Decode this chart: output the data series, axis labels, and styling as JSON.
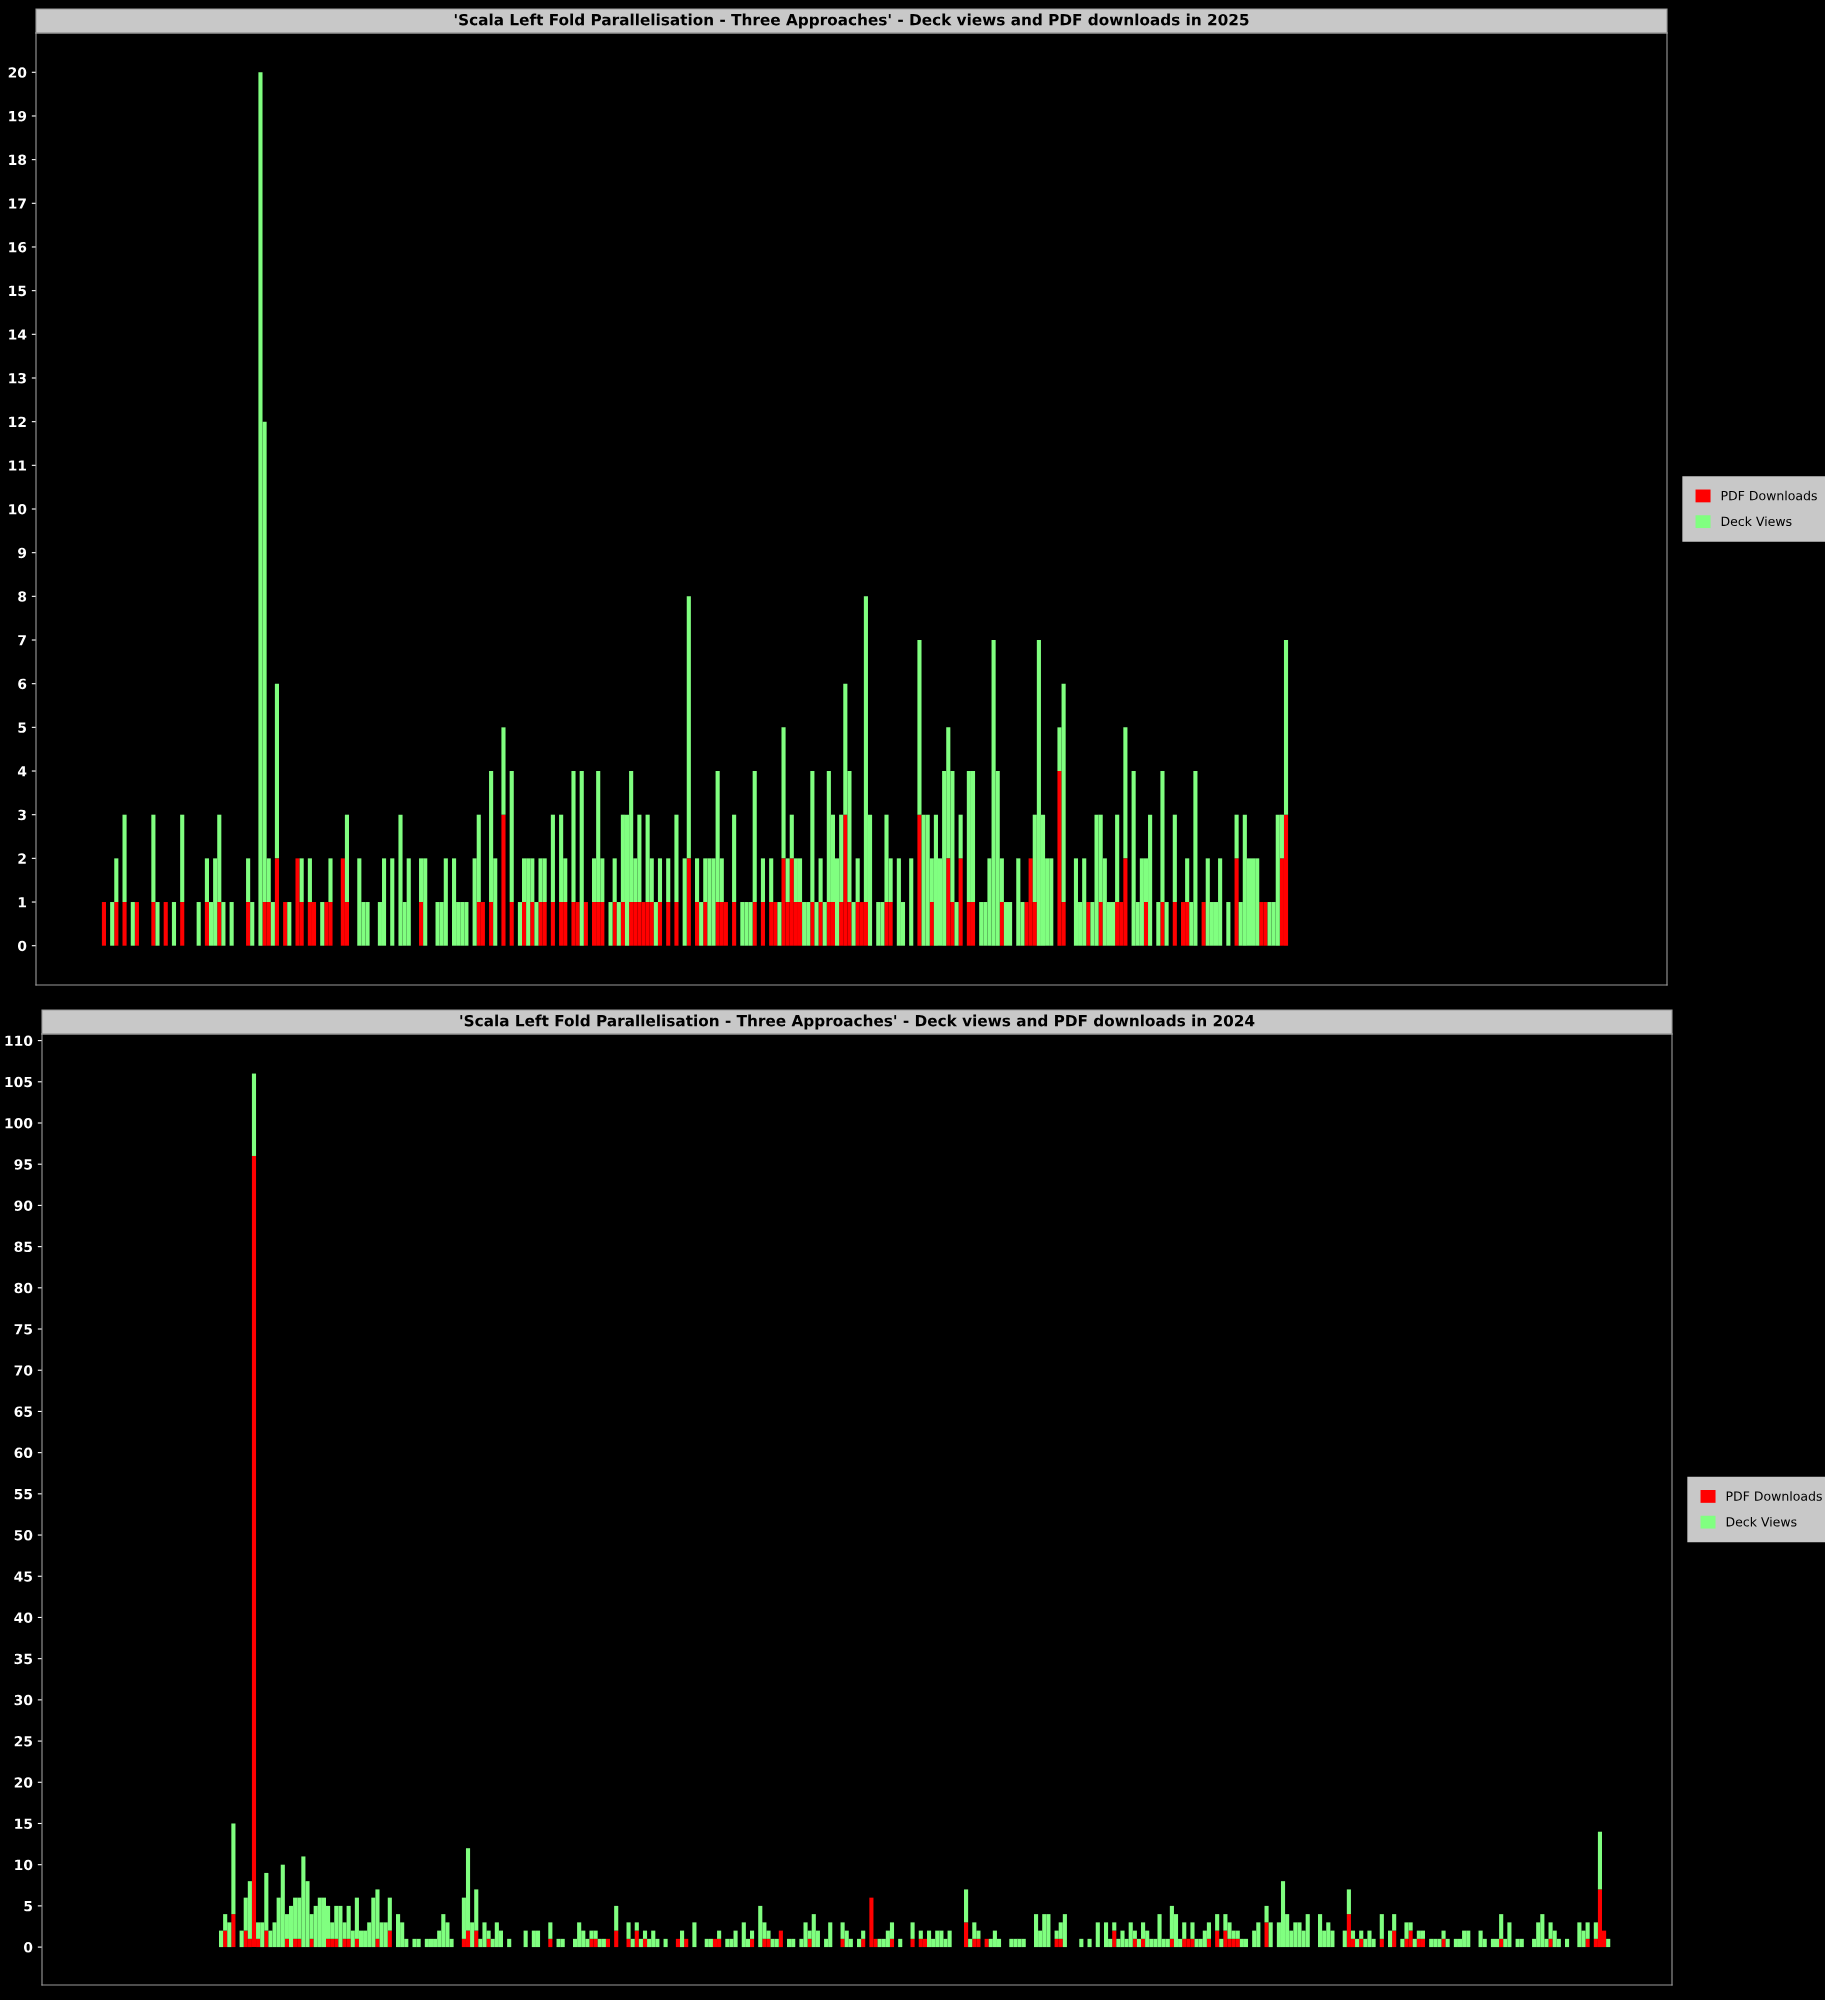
{
  "chart_data": [
    {
      "type": "bar",
      "title": "'Scala Left Fold Parallelisation - Three Approaches' - Deck views and PDF downloads in 2025",
      "stacked": true,
      "legend": "right",
      "grid": false,
      "ylim": [
        -0.9,
        20.9
      ],
      "yticks": [
        0,
        1,
        2,
        3,
        4,
        5,
        6,
        7,
        8,
        9,
        10,
        11,
        12,
        13,
        14,
        15,
        16,
        17,
        18,
        19,
        20
      ],
      "categories": [
        null,
        null,
        null,
        null,
        null,
        null,
        null,
        null,
        null,
        null,
        null,
        null,
        null,
        null,
        null,
        null,
        null,
        null,
        null,
        null,
        null,
        null,
        null,
        null,
        null,
        null,
        null,
        null,
        null,
        null,
        null,
        null,
        null,
        null,
        null,
        null,
        null,
        null,
        null,
        null,
        null,
        null,
        null,
        null,
        null,
        null,
        null,
        null,
        null,
        null,
        null,
        null,
        null,
        null,
        null,
        null,
        null,
        null,
        null,
        null,
        null,
        null,
        null,
        null,
        null,
        null,
        null,
        null,
        null,
        null,
        null,
        null,
        null,
        null,
        null,
        null,
        null,
        null,
        null,
        null,
        null,
        null,
        null,
        null,
        null,
        null,
        null,
        null,
        null,
        null,
        null,
        null,
        null,
        null,
        null,
        null,
        null,
        null,
        null,
        null,
        null,
        null,
        null,
        null,
        null,
        null,
        null,
        null,
        null,
        null,
        null,
        null,
        null,
        null,
        null,
        null,
        null,
        null,
        null,
        null,
        null,
        null,
        null,
        null,
        null,
        null,
        null,
        null,
        null,
        null,
        null,
        null,
        null,
        null,
        null,
        null,
        null,
        null,
        null,
        null,
        null,
        null,
        null,
        null,
        null,
        null,
        null,
        null,
        null,
        null,
        null,
        null,
        null,
        null,
        null,
        null,
        null,
        null,
        null,
        null,
        null,
        null,
        null,
        null,
        null,
        null,
        null,
        null,
        null,
        null,
        null,
        null,
        null,
        null,
        null,
        null,
        null,
        null,
        null,
        null,
        null,
        null,
        null,
        null,
        null,
        null,
        null,
        null,
        null,
        null,
        null,
        null,
        null,
        null,
        null,
        null,
        null,
        null,
        null,
        null,
        null,
        null,
        null,
        null,
        null,
        null,
        null,
        null,
        null,
        null,
        null,
        null,
        null,
        null,
        null,
        null,
        null,
        null,
        null,
        null,
        null,
        null,
        null,
        null,
        null,
        null,
        null,
        null,
        null,
        null,
        null,
        null,
        null,
        null,
        null,
        null,
        null,
        null,
        null,
        null,
        null,
        null,
        null,
        null,
        null,
        null,
        null,
        null,
        null,
        null,
        null,
        null,
        null,
        null,
        null,
        null,
        null,
        null,
        null,
        null,
        null,
        null,
        null,
        null,
        null,
        null,
        null,
        null,
        null,
        null,
        null,
        null,
        null,
        null,
        null,
        null,
        null,
        null,
        null,
        null,
        null,
        null,
        null,
        null,
        null,
        null,
        null,
        null,
        null,
        null,
        null,
        null,
        null,
        null,
        null,
        null,
        null,
        null,
        null,
        null,
        null,
        null,
        null,
        null,
        null,
        null,
        null,
        null,
        null,
        null,
        null,
        null,
        null,
        null,
        null,
        null,
        null,
        null,
        null,
        null,
        null,
        null,
        null,
        null,
        null,
        null,
        null,
        null,
        null,
        null,
        null,
        null,
        null,
        null,
        null,
        null,
        null,
        null,
        null,
        null,
        null,
        null,
        null,
        null,
        null,
        null,
        null,
        null,
        null,
        null,
        null,
        null,
        null,
        null,
        null,
        null,
        null,
        null,
        null,
        null,
        null,
        null,
        null,
        null,
        null,
        null,
        null,
        null,
        null,
        null,
        null,
        null,
        null,
        null,
        null,
        null,
        null,
        null,
        null,
        null,
        null,
        null,
        null,
        null,
        null,
        null,
        null,
        null,
        null,
        null,
        null,
        null,
        null,
        null,
        null,
        null
      ],
      "series": [
        {
          "name": "PDF Downloads",
          "color": "#ff0000",
          "values": [
            0,
            0,
            0,
            0,
            0,
            0,
            0,
            0,
            0,
            0,
            0,
            0,
            0,
            0,
            0,
            0,
            1,
            0,
            0,
            1,
            0,
            1,
            0,
            0,
            1,
            0,
            0,
            0,
            1,
            0,
            0,
            1,
            0,
            0,
            0,
            1,
            0,
            0,
            0,
            0,
            0,
            1,
            0,
            0,
            1,
            0,
            0,
            0,
            0,
            0,
            0,
            1,
            0,
            0,
            0,
            1,
            1,
            0,
            2,
            0,
            1,
            0,
            0,
            2,
            1,
            0,
            1,
            1,
            0,
            0,
            1,
            1,
            0,
            0,
            2,
            1,
            0,
            0,
            0,
            0,
            0,
            0,
            0,
            0,
            0,
            0,
            0,
            0,
            0,
            0,
            0,
            0,
            0,
            1,
            0,
            0,
            0,
            0,
            0,
            0,
            0,
            0,
            0,
            0,
            0,
            0,
            0,
            1,
            1,
            0,
            1,
            0,
            0,
            3,
            0,
            1,
            0,
            0,
            1,
            0,
            1,
            0,
            1,
            1,
            0,
            1,
            0,
            1,
            1,
            0,
            1,
            1,
            0,
            1,
            0,
            1,
            1,
            1,
            0,
            0,
            1,
            0,
            1,
            0,
            1,
            1,
            1,
            1,
            1,
            1,
            0,
            1,
            0,
            1,
            0,
            1,
            0,
            0,
            2,
            0,
            1,
            0,
            1,
            0,
            0,
            1,
            1,
            1,
            0,
            1,
            0,
            0,
            0,
            0,
            1,
            0,
            1,
            0,
            1,
            1,
            0,
            2,
            1,
            2,
            1,
            1,
            0,
            0,
            1,
            0,
            1,
            0,
            1,
            1,
            0,
            1,
            3,
            1,
            0,
            1,
            1,
            1,
            0,
            0,
            0,
            0,
            1,
            1,
            0,
            0,
            0,
            0,
            0,
            0,
            3,
            0,
            0,
            1,
            0,
            0,
            0,
            2,
            1,
            0,
            2,
            0,
            1,
            1,
            0,
            0,
            0,
            0,
            0,
            0,
            1,
            0,
            0,
            0,
            0,
            0,
            1,
            2,
            1,
            0,
            0,
            0,
            0,
            0,
            4,
            1,
            0,
            0,
            0,
            0,
            0,
            1,
            0,
            0,
            1,
            0,
            0,
            0,
            1,
            1,
            2,
            0,
            0,
            0,
            0,
            1,
            0,
            0,
            0,
            1,
            0,
            0,
            1,
            0,
            1,
            1,
            0,
            0,
            0,
            1,
            0,
            0,
            0,
            0,
            0,
            0,
            0,
            2,
            0,
            0,
            0,
            0,
            0,
            1,
            1,
            0,
            0,
            0,
            2,
            3,
            0,
            0,
            0,
            0,
            0,
            0,
            0,
            0,
            0,
            0,
            0,
            0,
            0,
            0,
            0,
            0,
            0,
            0,
            0,
            0,
            0,
            0,
            0,
            0,
            0,
            0,
            0,
            0,
            0,
            0,
            0,
            0,
            0,
            0,
            0,
            0,
            0,
            0,
            0,
            0,
            0,
            0,
            0,
            0,
            0,
            0,
            0,
            0,
            0,
            0,
            0,
            0,
            0,
            0,
            0,
            0,
            0,
            0,
            0,
            0,
            0,
            0,
            0,
            0,
            0,
            0,
            0,
            0,
            0,
            0,
            0,
            0,
            0,
            0,
            0,
            0,
            0,
            0,
            0,
            0,
            0,
            0,
            0,
            0,
            0,
            0,
            0,
            0,
            0,
            0,
            0,
            0
          ]
        },
        {
          "name": "Deck Views",
          "color": "#80ff80",
          "values": [
            0,
            0,
            0,
            0,
            0,
            0,
            0,
            0,
            0,
            0,
            0,
            0,
            0,
            0,
            0,
            0,
            0,
            0,
            1,
            1,
            0,
            2,
            0,
            1,
            0,
            0,
            0,
            0,
            2,
            1,
            0,
            0,
            0,
            1,
            0,
            2,
            0,
            0,
            0,
            1,
            0,
            1,
            1,
            2,
            2,
            1,
            0,
            1,
            0,
            0,
            0,
            1,
            1,
            0,
            20,
            11,
            1,
            1,
            4,
            0,
            0,
            1,
            0,
            0,
            1,
            0,
            1,
            0,
            0,
            1,
            0,
            1,
            0,
            0,
            0,
            2,
            0,
            0,
            2,
            1,
            1,
            0,
            0,
            1,
            2,
            0,
            2,
            0,
            3,
            1,
            2,
            0,
            0,
            1,
            2,
            0,
            0,
            1,
            1,
            2,
            0,
            2,
            1,
            1,
            1,
            0,
            2,
            2,
            0,
            0,
            3,
            2,
            0,
            2,
            0,
            3,
            0,
            1,
            1,
            2,
            1,
            1,
            1,
            1,
            0,
            2,
            0,
            2,
            1,
            0,
            3,
            0,
            4,
            0,
            0,
            1,
            3,
            1,
            0,
            1,
            1,
            1,
            2,
            3,
            3,
            1,
            2,
            0,
            2,
            1,
            1,
            1,
            0,
            1,
            0,
            2,
            0,
            2,
            6,
            0,
            1,
            1,
            1,
            2,
            2,
            3,
            1,
            0,
            0,
            2,
            0,
            1,
            1,
            1,
            3,
            0,
            1,
            0,
            1,
            0,
            1,
            3,
            1,
            1,
            1,
            1,
            1,
            1,
            3,
            1,
            1,
            1,
            3,
            2,
            2,
            2,
            3,
            3,
            1,
            1,
            0,
            7,
            3,
            0,
            1,
            1,
            2,
            1,
            0,
            2,
            1,
            0,
            2,
            0,
            4,
            3,
            3,
            1,
            3,
            2,
            4,
            3,
            3,
            1,
            1,
            0,
            3,
            3,
            0,
            1,
            1,
            2,
            7,
            4,
            1,
            1,
            1,
            0,
            2,
            1,
            0,
            0,
            2,
            7,
            3,
            2,
            2,
            0,
            1,
            5,
            0,
            0,
            2,
            1,
            2,
            0,
            1,
            3,
            2,
            2,
            1,
            1,
            2,
            0,
            3,
            0,
            4,
            1,
            2,
            1,
            3,
            0,
            1,
            3,
            1,
            0,
            2,
            0,
            0,
            1,
            1,
            4,
            0,
            0,
            2,
            1,
            1,
            2,
            0,
            1,
            0,
            1,
            1,
            3,
            2,
            2,
            2,
            0,
            0,
            1,
            1,
            3,
            1,
            4,
            0,
            0,
            0,
            0,
            0,
            0,
            0,
            0,
            0,
            0,
            0,
            0,
            0,
            0,
            0,
            0,
            0,
            0,
            0,
            0,
            0,
            0,
            0,
            0,
            0,
            0,
            0,
            0,
            0,
            0,
            0,
            0,
            0,
            0,
            0,
            0,
            0,
            0,
            0,
            0,
            0,
            0,
            0,
            0,
            0,
            0,
            0,
            0,
            0,
            0,
            0,
            0,
            0,
            0,
            0,
            0,
            0,
            0,
            0,
            0,
            0,
            0,
            0,
            0,
            0,
            0,
            0,
            0,
            0,
            0,
            0,
            0,
            0,
            0,
            0,
            0,
            0,
            0,
            0,
            0,
            0,
            0,
            0,
            0,
            0,
            0,
            0,
            0,
            0,
            0,
            0,
            0
          ]
        }
      ]
    },
    {
      "type": "bar",
      "title": "'Scala Left Fold Parallelisation - Three Approaches' - Deck views and PDF downloads in 2024",
      "stacked": true,
      "legend": "right",
      "grid": false,
      "ylim": [
        -4.6,
        110.8
      ],
      "yticks": [
        0,
        5,
        10,
        15,
        20,
        25,
        30,
        35,
        40,
        45,
        50,
        55,
        60,
        65,
        70,
        75,
        80,
        85,
        90,
        95,
        100,
        105,
        110
      ],
      "categories": [
        null,
        null,
        null,
        null,
        null,
        null,
        null,
        null,
        null,
        null,
        null,
        null,
        null,
        null,
        null,
        null,
        null,
        null,
        null,
        null,
        null,
        null,
        null,
        null,
        null,
        null,
        null,
        null,
        null,
        null,
        null,
        null,
        null,
        null,
        null,
        null,
        null,
        null,
        null,
        null,
        null,
        null,
        null,
        null,
        null,
        null,
        null,
        null,
        null,
        null,
        null,
        null,
        null,
        null,
        null,
        null,
        null,
        null,
        null,
        null,
        null,
        null,
        null,
        null,
        null,
        null,
        null,
        null,
        null,
        null,
        null,
        null,
        null,
        null,
        null,
        null,
        null,
        null,
        null,
        null,
        null,
        null,
        null,
        null,
        null,
        null,
        null,
        null,
        null,
        null,
        null,
        null,
        null,
        null,
        null,
        null,
        null,
        null,
        null,
        null,
        null,
        null,
        null,
        null,
        null,
        null,
        null,
        null,
        null,
        null,
        null,
        null,
        null,
        null,
        null,
        null,
        null,
        null,
        null,
        null,
        null,
        null,
        null,
        null,
        null,
        null,
        null,
        null,
        null,
        null,
        null,
        null,
        null,
        null,
        null,
        null,
        null,
        null,
        null,
        null,
        null,
        null,
        null,
        null,
        null,
        null,
        null,
        null,
        null,
        null,
        null,
        null,
        null,
        null,
        null,
        null,
        null,
        null,
        null,
        null,
        null,
        null,
        null,
        null,
        null,
        null,
        null,
        null,
        null,
        null,
        null,
        null,
        null,
        null,
        null,
        null,
        null,
        null,
        null,
        null,
        null,
        null,
        null,
        null,
        null,
        null,
        null,
        null,
        null,
        null,
        null,
        null,
        null,
        null,
        null,
        null,
        null,
        null,
        null,
        null,
        null,
        null,
        null,
        null,
        null,
        null,
        null,
        null,
        null,
        null,
        null,
        null,
        null,
        null,
        null,
        null,
        null,
        null,
        null,
        null,
        null,
        null,
        null,
        null,
        null,
        null,
        null,
        null,
        null,
        null,
        null,
        null,
        null,
        null,
        null,
        null,
        null,
        null,
        null,
        null,
        null,
        null,
        null,
        null,
        null,
        null,
        null,
        null,
        null,
        null,
        null,
        null,
        null,
        null,
        null,
        null,
        null,
        null,
        null,
        null,
        null,
        null,
        null,
        null,
        null,
        null,
        null,
        null,
        null,
        null,
        null,
        null,
        null,
        null,
        null,
        null,
        null,
        null,
        null,
        null,
        null,
        null,
        null,
        null,
        null,
        null,
        null,
        null,
        null,
        null,
        null,
        null,
        null,
        null,
        null,
        null,
        null,
        null,
        null,
        null,
        null,
        null,
        null,
        null,
        null,
        null,
        null,
        null,
        null,
        null,
        null,
        null,
        null,
        null,
        null,
        null,
        null,
        null,
        null,
        null,
        null,
        null,
        null,
        null,
        null,
        null,
        null,
        null,
        null,
        null,
        null,
        null,
        null,
        null,
        null,
        null,
        null,
        null,
        null,
        null,
        null,
        null,
        null,
        null,
        null,
        null,
        null,
        null,
        null,
        null,
        null,
        null,
        null,
        null,
        null,
        null,
        null,
        null,
        null,
        null,
        null,
        null,
        null,
        null,
        null,
        null,
        null,
        null,
        null,
        null,
        null,
        null,
        null,
        null,
        null,
        null,
        null,
        null,
        null,
        null,
        null,
        null,
        null,
        null,
        null,
        null,
        null,
        null,
        null,
        null,
        null,
        null,
        null,
        null,
        null,
        null
      ],
      "series": [
        {
          "name": "PDF Downloads",
          "color": "#ff0000",
          "values": [
            0,
            0,
            0,
            0,
            0,
            0,
            0,
            0,
            0,
            0,
            0,
            0,
            0,
            0,
            0,
            0,
            0,
            0,
            0,
            0,
            0,
            0,
            0,
            0,
            0,
            0,
            0,
            0,
            0,
            0,
            0,
            0,
            0,
            0,
            0,
            0,
            0,
            0,
            0,
            0,
            0,
            0,
            0,
            0,
            2,
            0,
            4,
            0,
            0,
            2,
            1,
            96,
            1,
            0,
            2,
            0,
            0,
            0,
            0,
            1,
            0,
            1,
            1,
            0,
            0,
            1,
            0,
            0,
            0,
            1,
            1,
            1,
            0,
            1,
            1,
            0,
            1,
            0,
            0,
            0,
            0,
            1,
            0,
            0,
            2,
            0,
            0,
            0,
            0,
            0,
            0,
            0,
            0,
            0,
            0,
            0,
            0,
            0,
            0,
            0,
            0,
            0,
            1,
            2,
            0,
            2,
            0,
            0,
            1,
            0,
            0,
            0,
            0,
            0,
            0,
            0,
            0,
            0,
            0,
            0,
            0,
            0,
            0,
            1,
            0,
            0,
            0,
            0,
            0,
            0,
            0,
            0,
            0,
            1,
            1,
            0,
            0,
            1,
            0,
            2,
            0,
            0,
            1,
            0,
            2,
            0,
            1,
            0,
            0,
            0,
            0,
            0,
            0,
            0,
            1,
            0,
            1,
            0,
            0,
            0,
            0,
            0,
            0,
            1,
            1,
            0,
            0,
            0,
            0,
            0,
            0,
            0,
            1,
            0,
            0,
            1,
            1,
            0,
            0,
            2,
            0,
            0,
            0,
            0,
            0,
            0,
            1,
            0,
            0,
            0,
            0,
            0,
            0,
            0,
            1,
            0,
            0,
            0,
            0,
            1,
            0,
            6,
            1,
            0,
            0,
            0,
            1,
            0,
            0,
            0,
            0,
            1,
            0,
            1,
            1,
            0,
            0,
            0,
            0,
            0,
            0,
            0,
            0,
            0,
            3,
            0,
            1,
            1,
            0,
            1,
            0,
            0,
            0,
            0,
            0,
            0,
            0,
            0,
            0,
            0,
            0,
            0,
            0,
            0,
            0,
            0,
            1,
            1,
            0,
            0,
            0,
            0,
            0,
            0,
            0,
            0,
            0,
            0,
            0,
            0,
            2,
            0,
            0,
            0,
            0,
            1,
            0,
            1,
            0,
            0,
            0,
            0,
            0,
            0,
            1,
            0,
            0,
            1,
            1,
            1,
            0,
            0,
            0,
            1,
            0,
            2,
            0,
            2,
            1,
            1,
            1,
            0,
            0,
            0,
            0,
            0,
            0,
            3,
            0,
            0,
            0,
            0,
            0,
            0,
            0,
            0,
            0,
            0,
            0,
            0,
            0,
            0,
            0,
            0,
            0,
            0,
            0,
            4,
            1,
            0,
            1,
            0,
            0,
            0,
            0,
            1,
            0,
            0,
            2,
            0,
            0,
            1,
            2,
            0,
            1,
            1,
            0,
            0,
            0,
            0,
            1,
            0,
            0,
            0,
            0,
            0,
            0,
            0,
            0,
            0,
            0,
            0,
            0,
            0,
            1,
            0,
            0,
            0,
            0,
            0,
            0,
            0,
            0,
            0,
            0,
            0,
            1,
            0,
            0,
            0,
            0,
            0,
            0,
            0,
            0,
            1,
            0,
            1,
            7,
            2,
            0,
            0,
            0,
            0,
            0,
            0,
            0,
            0,
            0,
            0,
            0,
            0,
            0,
            0,
            0,
            0
          ]
        },
        {
          "name": "Deck Views",
          "color": "#80ff80",
          "values": [
            0,
            0,
            0,
            0,
            0,
            0,
            0,
            0,
            0,
            0,
            0,
            0,
            0,
            0,
            0,
            0,
            0,
            0,
            0,
            0,
            0,
            0,
            0,
            0,
            0,
            0,
            0,
            0,
            0,
            0,
            0,
            0,
            0,
            0,
            0,
            0,
            0,
            0,
            0,
            0,
            0,
            0,
            0,
            2,
            2,
            3,
            11,
            0,
            2,
            4,
            7,
            10,
            2,
            3,
            7,
            2,
            3,
            6,
            10,
            3,
            5,
            5,
            5,
            11,
            8,
            3,
            5,
            6,
            6,
            4,
            2,
            4,
            5,
            2,
            4,
            2,
            5,
            2,
            2,
            3,
            6,
            6,
            3,
            3,
            4,
            0,
            4,
            3,
            1,
            0,
            1,
            1,
            0,
            1,
            1,
            1,
            2,
            4,
            3,
            1,
            0,
            0,
            5,
            10,
            3,
            5,
            1,
            3,
            1,
            1,
            3,
            2,
            0,
            1,
            0,
            0,
            0,
            2,
            0,
            2,
            2,
            0,
            0,
            2,
            0,
            1,
            1,
            0,
            0,
            1,
            3,
            2,
            1,
            1,
            1,
            1,
            1,
            0,
            0,
            3,
            0,
            0,
            2,
            1,
            1,
            1,
            1,
            1,
            2,
            1,
            0,
            1,
            0,
            0,
            0,
            2,
            0,
            0,
            3,
            0,
            0,
            1,
            1,
            0,
            1,
            0,
            1,
            1,
            2,
            0,
            3,
            1,
            1,
            0,
            5,
            2,
            1,
            1,
            1,
            0,
            0,
            1,
            1,
            0,
            1,
            3,
            1,
            4,
            2,
            0,
            1,
            3,
            0,
            0,
            2,
            2,
            1,
            0,
            1,
            1,
            0,
            0,
            0,
            1,
            1,
            2,
            2,
            0,
            1,
            0,
            0,
            2,
            0,
            1,
            0,
            2,
            1,
            2,
            2,
            1,
            2,
            0,
            0,
            0,
            4,
            1,
            2,
            1,
            0,
            0,
            1,
            2,
            1,
            0,
            0,
            1,
            1,
            1,
            1,
            0,
            0,
            4,
            2,
            4,
            4,
            0,
            1,
            2,
            4,
            0,
            0,
            0,
            1,
            0,
            1,
            0,
            3,
            0,
            3,
            1,
            1,
            1,
            2,
            1,
            3,
            1,
            1,
            2,
            2,
            1,
            1,
            4,
            1,
            1,
            4,
            4,
            1,
            2,
            0,
            2,
            1,
            1,
            2,
            2,
            0,
            2,
            1,
            2,
            2,
            1,
            1,
            1,
            1,
            0,
            2,
            3,
            0,
            2,
            3,
            0,
            3,
            8,
            4,
            2,
            3,
            3,
            2,
            4,
            0,
            0,
            4,
            2,
            3,
            2,
            0,
            0,
            2,
            3,
            1,
            1,
            1,
            1,
            2,
            1,
            0,
            3,
            0,
            2,
            2,
            0,
            1,
            2,
            1,
            1,
            1,
            1,
            0,
            1,
            1,
            1,
            1,
            1,
            0,
            1,
            1,
            2,
            2,
            0,
            0,
            2,
            1,
            0,
            1,
            1,
            3,
            1,
            3,
            0,
            1,
            1,
            0,
            0,
            1,
            3,
            4,
            1,
            2,
            2,
            1,
            0,
            1,
            0,
            0,
            3,
            2,
            2,
            0,
            2,
            7,
            0,
            1,
            0,
            0,
            0,
            0,
            0,
            0,
            0,
            0,
            0,
            0,
            0,
            0,
            0,
            0,
            0
          ]
        }
      ]
    }
  ]
}
